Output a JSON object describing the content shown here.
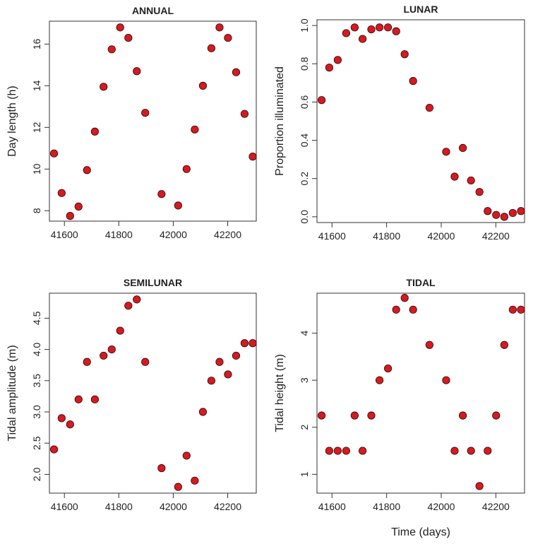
{
  "figure": {
    "shared_xlabel": "Time (days)"
  },
  "colors": {
    "point_fill": "#d71920",
    "point_stroke": "#2a0a0a",
    "axis": "#333333"
  },
  "chart_data": [
    {
      "id": "annual",
      "type": "scatter",
      "title": "ANNUAL",
      "xlabel": "",
      "ylabel": "Day length (h)",
      "xlim": [
        41545,
        42305
      ],
      "ylim": [
        7.5,
        17.1
      ],
      "xticks": [
        41600,
        41800,
        42000,
        42200
      ],
      "xtick_labels": [
        "41600",
        "41800",
        "42000",
        "42200"
      ],
      "yticks": [
        8,
        10,
        12,
        14,
        16
      ],
      "ytick_labels": [
        "8",
        "10",
        "12",
        "14",
        "16"
      ],
      "x": [
        41562,
        41590,
        41621,
        41652,
        41683,
        41712,
        41744,
        41774,
        41805,
        41835,
        41866,
        41897,
        41957,
        42018,
        42049,
        42079,
        42109,
        42140,
        42170,
        42201,
        42231,
        42262,
        42292
      ],
      "y": [
        10.75,
        8.85,
        7.75,
        8.2,
        9.95,
        11.8,
        13.95,
        15.75,
        16.8,
        16.3,
        14.7,
        12.7,
        8.8,
        8.25,
        10.0,
        11.9,
        14.0,
        15.8,
        16.8,
        16.3,
        14.65,
        12.65,
        10.6
      ]
    },
    {
      "id": "lunar",
      "type": "scatter",
      "title": "LUNAR",
      "xlabel": "",
      "ylabel": "Proportion illuminated",
      "xlim": [
        41545,
        42305
      ],
      "ylim": [
        -0.03,
        1.03
      ],
      "xticks": [
        41600,
        41800,
        42000,
        42200
      ],
      "xtick_labels": [
        "41600",
        "41800",
        "42000",
        "42200"
      ],
      "yticks": [
        0.0,
        0.2,
        0.4,
        0.6,
        0.8,
        1.0
      ],
      "ytick_labels": [
        "0.0",
        "0.2",
        "0.4",
        "0.6",
        "0.8",
        "1.0"
      ],
      "x": [
        41562,
        41590,
        41621,
        41652,
        41683,
        41712,
        41744,
        41774,
        41805,
        41835,
        41866,
        41897,
        41957,
        42018,
        42049,
        42079,
        42109,
        42140,
        42170,
        42201,
        42231,
        42262,
        42292
      ],
      "y": [
        0.61,
        0.78,
        0.82,
        0.96,
        0.99,
        0.93,
        0.98,
        0.99,
        0.99,
        0.97,
        0.85,
        0.71,
        0.57,
        0.34,
        0.21,
        0.36,
        0.19,
        0.13,
        0.03,
        0.01,
        0.0,
        0.02,
        0.03
      ]
    },
    {
      "id": "semilunar",
      "type": "scatter",
      "title": "SEMILUNAR",
      "xlabel": "",
      "ylabel": "Tidal amplitude (m)",
      "xlim": [
        41545,
        42305
      ],
      "ylim": [
        1.7,
        4.9
      ],
      "xticks": [
        41600,
        41800,
        42000,
        42200
      ],
      "xtick_labels": [
        "41600",
        "41800",
        "42000",
        "42200"
      ],
      "yticks": [
        2.0,
        2.5,
        3.0,
        3.5,
        4.0,
        4.5
      ],
      "ytick_labels": [
        "2.0",
        "2.5",
        "3.0",
        "3.5",
        "4.0",
        "4.5"
      ],
      "x": [
        41562,
        41590,
        41621,
        41652,
        41683,
        41712,
        41744,
        41774,
        41805,
        41835,
        41866,
        41897,
        41957,
        42018,
        42049,
        42079,
        42109,
        42140,
        42170,
        42201,
        42231,
        42262,
        42292
      ],
      "y": [
        2.4,
        2.9,
        2.8,
        3.2,
        3.8,
        3.2,
        3.9,
        4.0,
        4.3,
        4.7,
        4.8,
        3.8,
        2.1,
        1.8,
        2.3,
        1.9,
        3.0,
        3.5,
        3.8,
        3.6,
        3.9,
        4.1,
        4.1
      ]
    },
    {
      "id": "tidal",
      "type": "scatter",
      "title": "TIDAL",
      "xlabel": "Time (days)",
      "ylabel": "Tidal height (m)",
      "xlim": [
        41545,
        42305
      ],
      "ylim": [
        0.6,
        4.85
      ],
      "xticks": [
        41600,
        41800,
        42000,
        42200
      ],
      "xtick_labels": [
        "41600",
        "41800",
        "42000",
        "42200"
      ],
      "yticks": [
        1,
        2,
        3,
        4
      ],
      "ytick_labels": [
        "1",
        "2",
        "3",
        "4"
      ],
      "x": [
        41562,
        41590,
        41621,
        41652,
        41683,
        41712,
        41744,
        41774,
        41805,
        41835,
        41866,
        41897,
        41957,
        42018,
        42049,
        42079,
        42109,
        42140,
        42170,
        42201,
        42231,
        42262,
        42292
      ],
      "y": [
        2.25,
        1.5,
        1.5,
        1.5,
        2.25,
        1.5,
        2.25,
        3.0,
        3.25,
        4.5,
        4.75,
        4.5,
        3.75,
        3.0,
        1.5,
        2.25,
        1.5,
        0.75,
        1.5,
        2.25,
        3.75,
        4.5,
        4.5
      ]
    }
  ]
}
